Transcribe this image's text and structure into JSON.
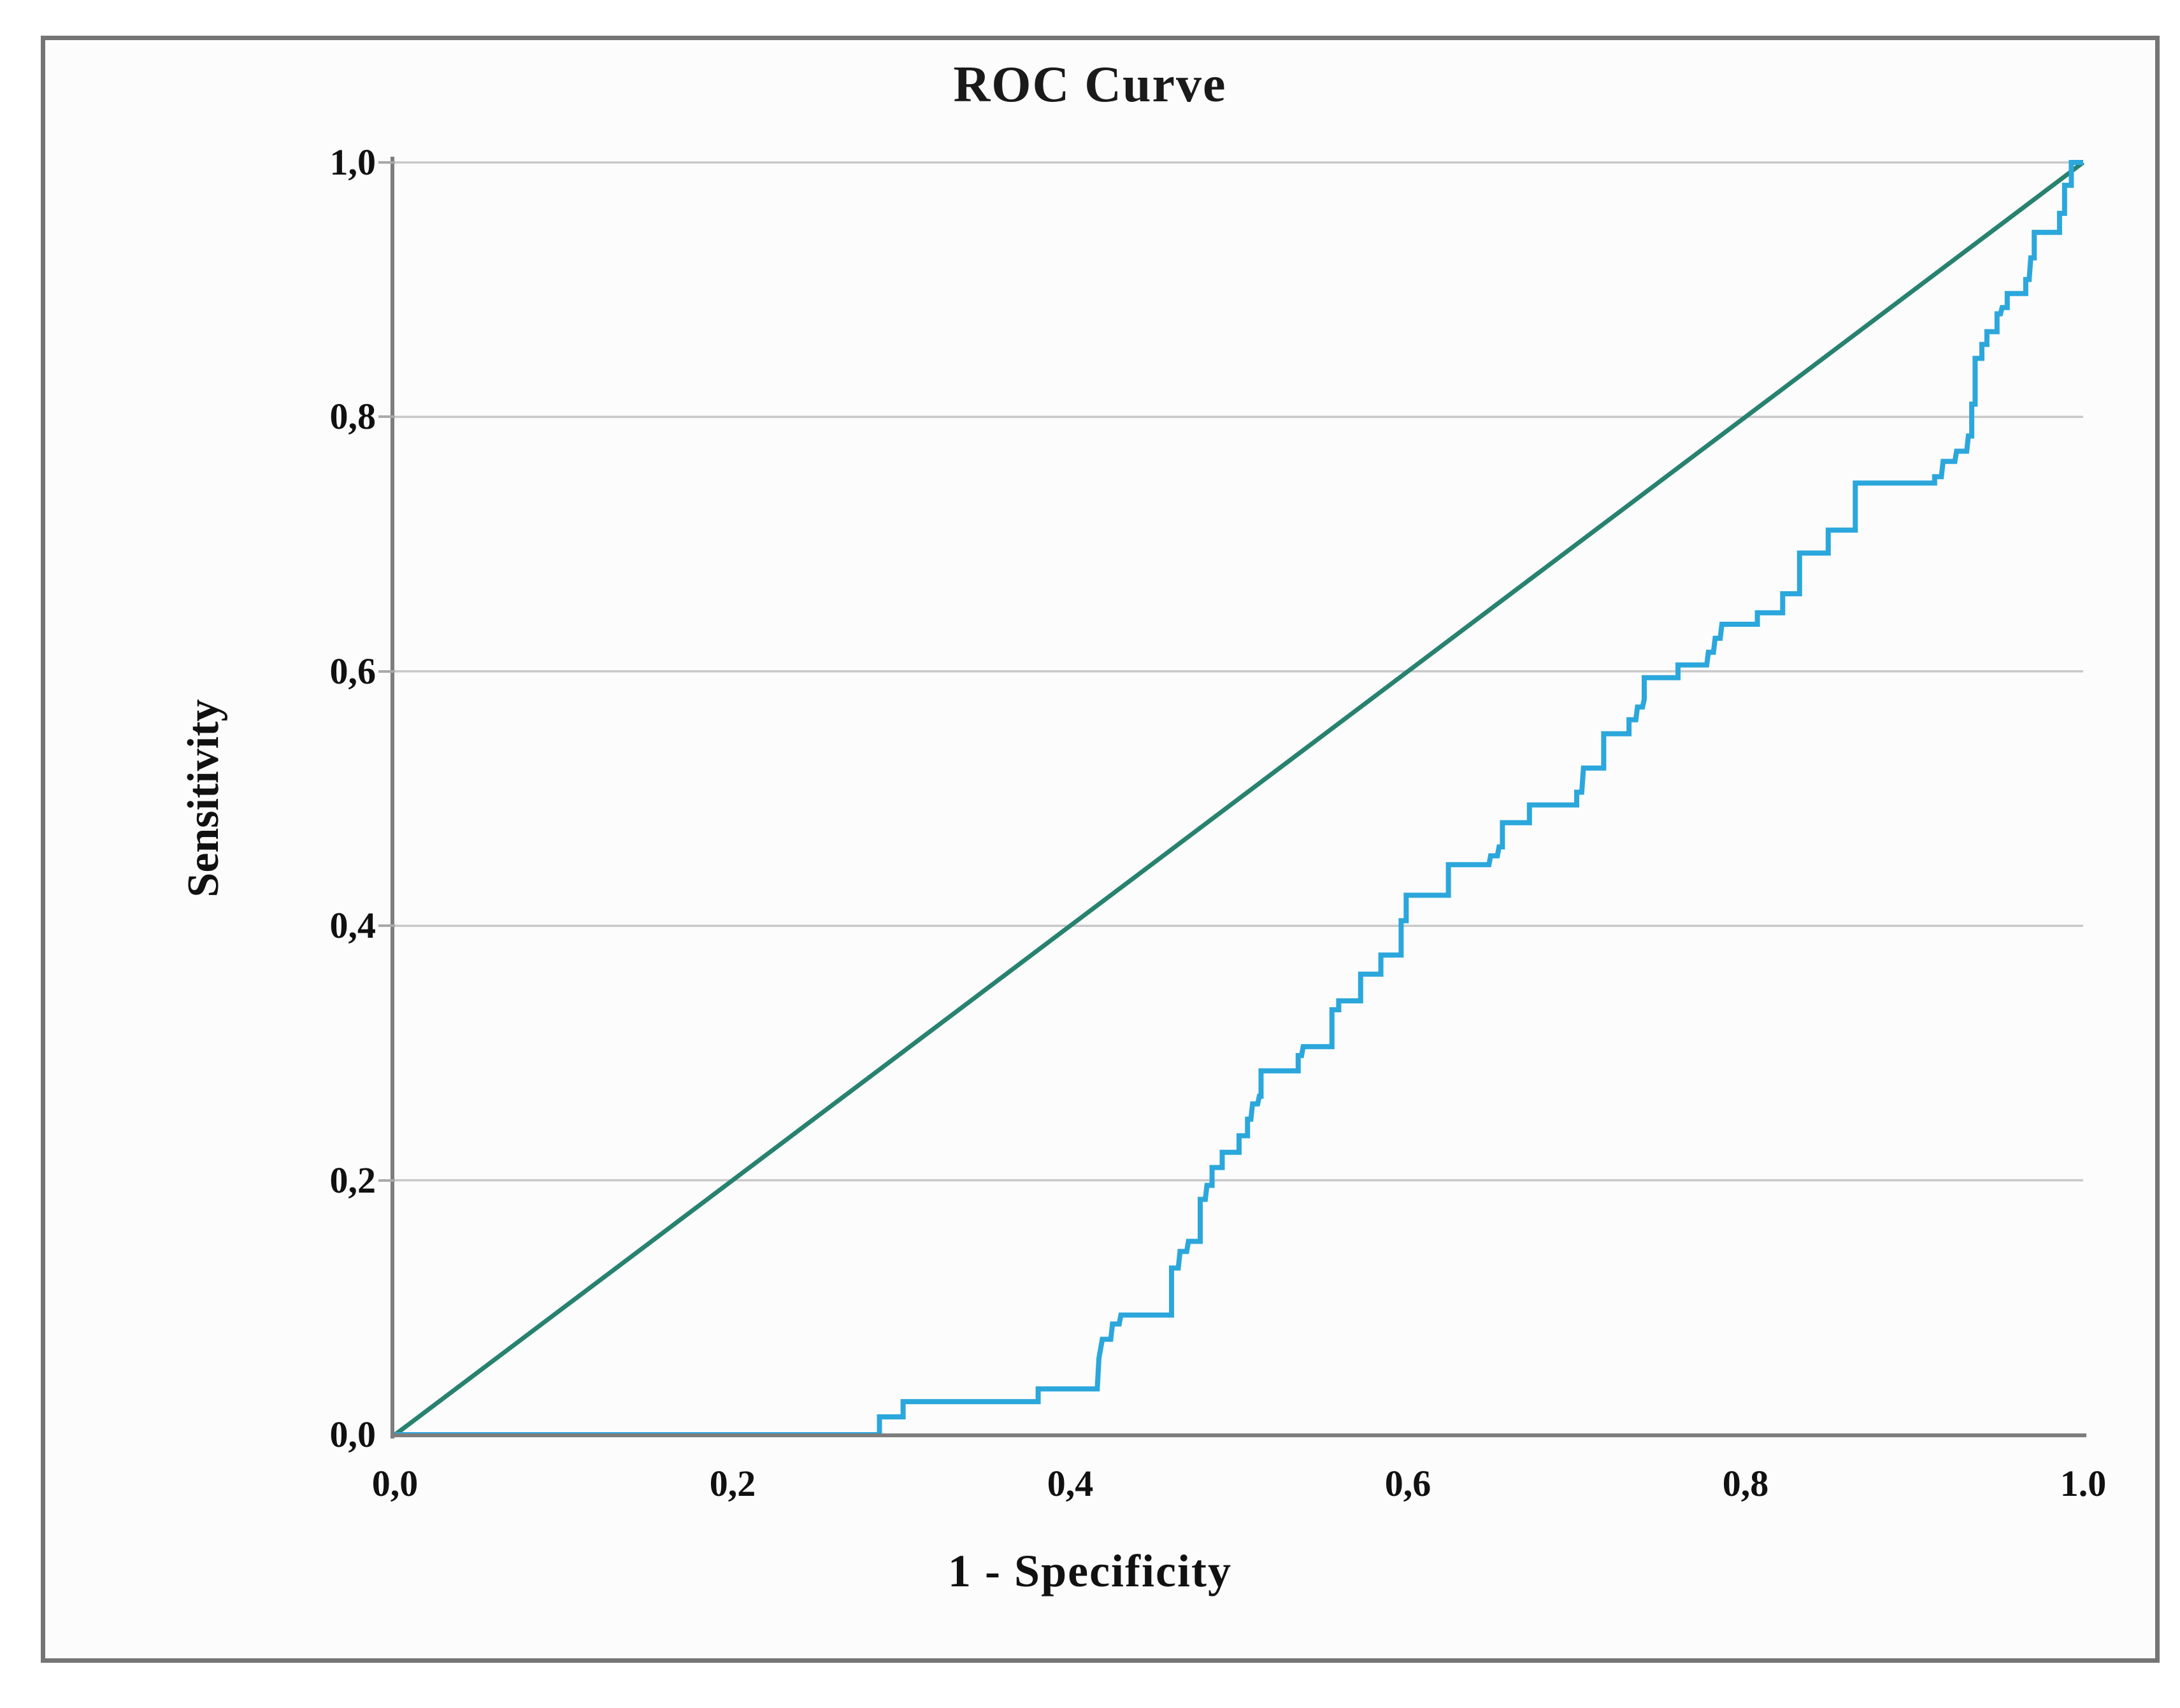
{
  "chart_data": {
    "type": "line",
    "title": "ROC Curve",
    "xlabel": "1 - Specificity",
    "ylabel": "Sensitivity",
    "xlim": [
      0,
      1
    ],
    "ylim": [
      0,
      1
    ],
    "grid": "horizontal-only",
    "x_tick_labels": [
      "0,0",
      "0,2",
      "0,4",
      "0,6",
      "0,8",
      "1.0"
    ],
    "y_tick_labels": [
      "0,0",
      "0,2",
      "0,4",
      "0,6",
      "0,8",
      "1,0"
    ],
    "y_gridlines": [
      0.2,
      0.4,
      0.6,
      0.8,
      1.0
    ],
    "colors": {
      "roc_curve": "#2BA7DC",
      "reference_line": "#27826F",
      "gridline": "#C9C9C9",
      "axis": "#7D7D7D"
    },
    "series": [
      {
        "name": "roc-curve",
        "points": [
          [
            0.0,
            0.0
          ],
          [
            0.287,
            0.0
          ],
          [
            0.287,
            0.014
          ],
          [
            0.301,
            0.014
          ],
          [
            0.301,
            0.026
          ],
          [
            0.381,
            0.026
          ],
          [
            0.381,
            0.036
          ],
          [
            0.416,
            0.036
          ],
          [
            0.417,
            0.06
          ],
          [
            0.419,
            0.075
          ],
          [
            0.424,
            0.075
          ],
          [
            0.425,
            0.087
          ],
          [
            0.429,
            0.087
          ],
          [
            0.43,
            0.094
          ],
          [
            0.46,
            0.094
          ],
          [
            0.46,
            0.131
          ],
          [
            0.464,
            0.131
          ],
          [
            0.465,
            0.144
          ],
          [
            0.469,
            0.144
          ],
          [
            0.47,
            0.152
          ],
          [
            0.477,
            0.152
          ],
          [
            0.477,
            0.185
          ],
          [
            0.48,
            0.185
          ],
          [
            0.481,
            0.196
          ],
          [
            0.484,
            0.196
          ],
          [
            0.484,
            0.21
          ],
          [
            0.49,
            0.21
          ],
          [
            0.49,
            0.222
          ],
          [
            0.5,
            0.222
          ],
          [
            0.5,
            0.235
          ],
          [
            0.505,
            0.235
          ],
          [
            0.505,
            0.248
          ],
          [
            0.507,
            0.248
          ],
          [
            0.508,
            0.26
          ],
          [
            0.511,
            0.26
          ],
          [
            0.512,
            0.266
          ],
          [
            0.513,
            0.266
          ],
          [
            0.513,
            0.286
          ],
          [
            0.535,
            0.286
          ],
          [
            0.535,
            0.298
          ],
          [
            0.537,
            0.298
          ],
          [
            0.538,
            0.305
          ],
          [
            0.555,
            0.305
          ],
          [
            0.555,
            0.334
          ],
          [
            0.559,
            0.334
          ],
          [
            0.559,
            0.341
          ],
          [
            0.572,
            0.341
          ],
          [
            0.572,
            0.362
          ],
          [
            0.584,
            0.362
          ],
          [
            0.584,
            0.377
          ],
          [
            0.596,
            0.377
          ],
          [
            0.596,
            0.404
          ],
          [
            0.599,
            0.404
          ],
          [
            0.599,
            0.424
          ],
          [
            0.624,
            0.424
          ],
          [
            0.624,
            0.448
          ],
          [
            0.648,
            0.448
          ],
          [
            0.649,
            0.455
          ],
          [
            0.653,
            0.455
          ],
          [
            0.654,
            0.462
          ],
          [
            0.656,
            0.462
          ],
          [
            0.656,
            0.481
          ],
          [
            0.672,
            0.481
          ],
          [
            0.672,
            0.495
          ],
          [
            0.7,
            0.495
          ],
          [
            0.7,
            0.505
          ],
          [
            0.703,
            0.505
          ],
          [
            0.704,
            0.524
          ],
          [
            0.716,
            0.524
          ],
          [
            0.716,
            0.551
          ],
          [
            0.731,
            0.551
          ],
          [
            0.731,
            0.562
          ],
          [
            0.735,
            0.562
          ],
          [
            0.736,
            0.572
          ],
          [
            0.739,
            0.572
          ],
          [
            0.74,
            0.578
          ],
          [
            0.74,
            0.595
          ],
          [
            0.76,
            0.595
          ],
          [
            0.76,
            0.605
          ],
          [
            0.777,
            0.605
          ],
          [
            0.778,
            0.615
          ],
          [
            0.781,
            0.615
          ],
          [
            0.782,
            0.626
          ],
          [
            0.785,
            0.626
          ],
          [
            0.786,
            0.637
          ],
          [
            0.807,
            0.637
          ],
          [
            0.807,
            0.646
          ],
          [
            0.822,
            0.646
          ],
          [
            0.822,
            0.661
          ],
          [
            0.832,
            0.661
          ],
          [
            0.832,
            0.693
          ],
          [
            0.849,
            0.693
          ],
          [
            0.849,
            0.711
          ],
          [
            0.865,
            0.711
          ],
          [
            0.865,
            0.748
          ],
          [
            0.912,
            0.748
          ],
          [
            0.912,
            0.753
          ],
          [
            0.916,
            0.753
          ],
          [
            0.917,
            0.765
          ],
          [
            0.924,
            0.765
          ],
          [
            0.925,
            0.773
          ],
          [
            0.931,
            0.773
          ],
          [
            0.932,
            0.785
          ],
          [
            0.934,
            0.785
          ],
          [
            0.934,
            0.81
          ],
          [
            0.936,
            0.81
          ],
          [
            0.936,
            0.846
          ],
          [
            0.94,
            0.846
          ],
          [
            0.94,
            0.857
          ],
          [
            0.943,
            0.857
          ],
          [
            0.943,
            0.867
          ],
          [
            0.949,
            0.867
          ],
          [
            0.949,
            0.881
          ],
          [
            0.951,
            0.881
          ],
          [
            0.952,
            0.886
          ],
          [
            0.955,
            0.886
          ],
          [
            0.955,
            0.897
          ],
          [
            0.966,
            0.897
          ],
          [
            0.966,
            0.908
          ],
          [
            0.968,
            0.908
          ],
          [
            0.969,
            0.925
          ],
          [
            0.971,
            0.925
          ],
          [
            0.971,
            0.945
          ],
          [
            0.986,
            0.945
          ],
          [
            0.986,
            0.96
          ],
          [
            0.989,
            0.96
          ],
          [
            0.989,
            0.982
          ],
          [
            0.993,
            0.982
          ],
          [
            0.993,
            1.0
          ],
          [
            1.0,
            1.0
          ]
        ]
      },
      {
        "name": "reference-diagonal",
        "points": [
          [
            0.0,
            0.0
          ],
          [
            1.0,
            1.0
          ]
        ]
      }
    ]
  }
}
